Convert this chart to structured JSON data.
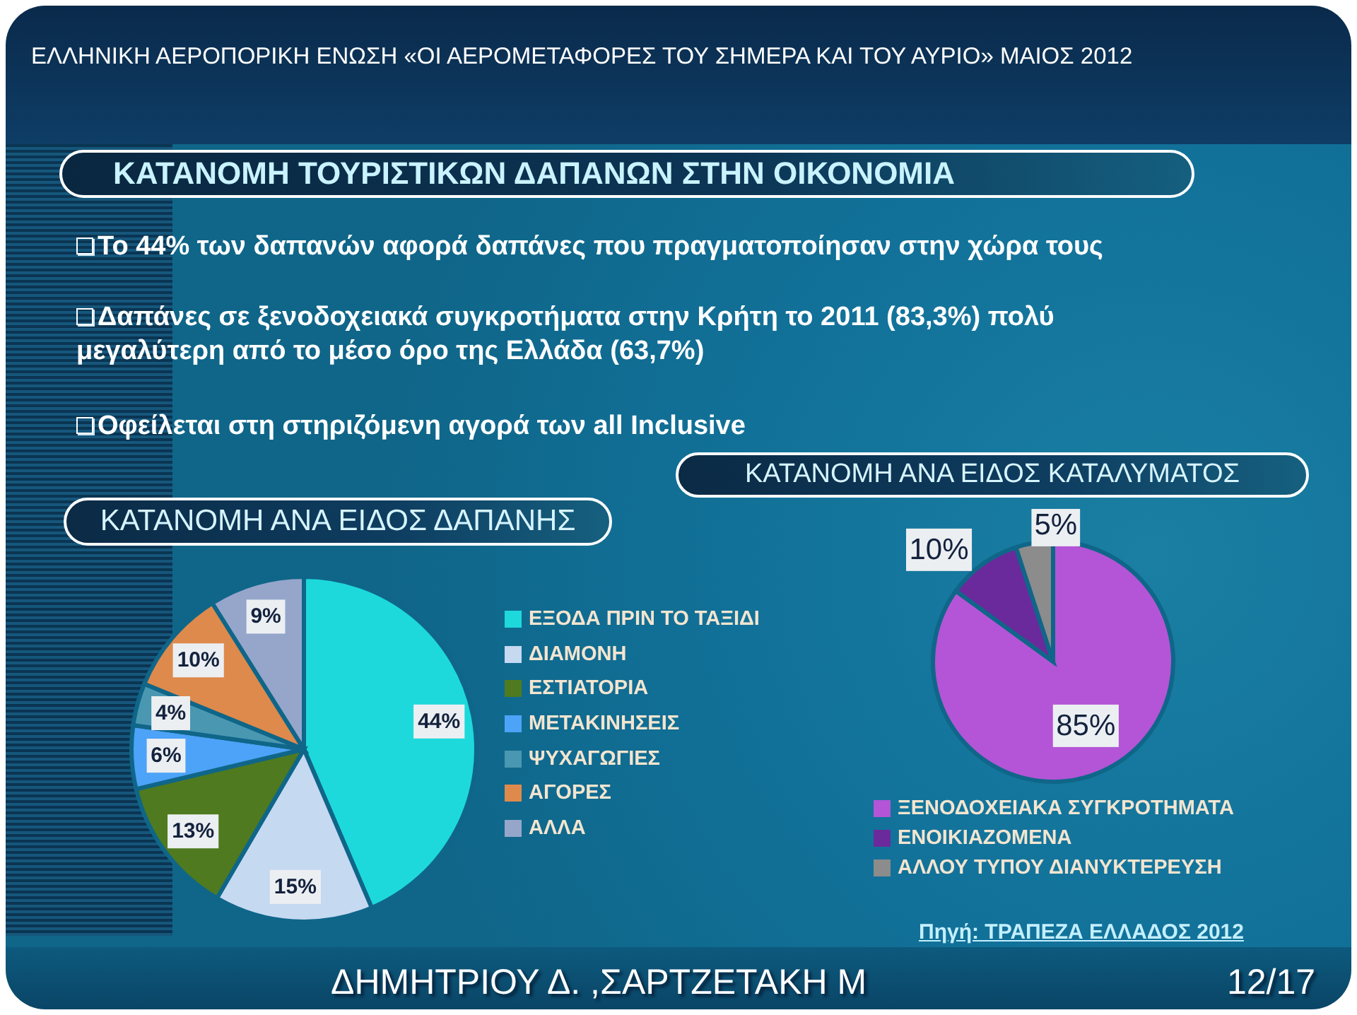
{
  "chart_data": [
    {
      "type": "pie",
      "title": "ΚΑΤΑΝΟΜΗ ΑΝΑ ΕΙΔΟΣ ΔΑΠΑΝΗΣ",
      "categories": [
        "ΕΞΟΔΑ ΠΡΙΝ ΤΟ ΤΑΞΙΔΙ",
        "ΔΙΑΜΟΝΗ",
        "ΕΣΤΙΑΤΟΡΙΑ",
        "ΜΕΤΑΚΙΝΗΣΕΙΣ",
        "ΨΥΧΑΓΩΓΙΕΣ",
        "ΑΓΟΡΕΣ",
        "ΑΛΛΑ"
      ],
      "values": [
        44,
        15,
        13,
        6,
        4,
        10,
        9
      ],
      "colors": [
        "#1dd9dc",
        "#c5d9f1",
        "#4f7a1f",
        "#4da3f7",
        "#4a97b2",
        "#de8a4c",
        "#96a6cb"
      ],
      "value_labels": [
        "44%",
        "15%",
        "13%",
        "6%",
        "4%",
        "10%",
        "9%"
      ],
      "legend": "right",
      "annotations": [
        "ΕΛΛΗΝΙΚΗ ΑΕΡΟΠΟΡΙΚΗ ΕΝΩΣΗ «ΟΙ ΑΕΡΟΜΕΤΑΦΟΡΕΣ ΤΟΥ ΣΗΜΕΡΑ ΚΑΙ ΤΟΥ ΑΥΡΙΟ» ΜΑΙΟΣ 2012",
        "ΚΑΤΑΝΟΜΗ ΤΟΥΡΙΣΤΙΚΩΝ ΔΑΠΑΝΩΝ ΣΤΗΝ ΟΙΚΟΝΟΜΙΑ",
        "Το 44% των δαπανών αφορά δαπάνες που πραγματοποίησαν στην χώρα τους",
        "Δαπάνες σε ξενοδοχειακά συγκροτήματα στην Κρήτη το 2011 (83,3%) πολύ μεγαλύτερη από το μέσο όρο της Ελλάδα (63,7%)",
        "Οφείλεται στη στηριζόμενη αγορά των all Inclusive"
      ]
    },
    {
      "type": "pie",
      "title": "ΚΑΤΑΝΟΜΗ ΑΝΑ ΕΙΔΟΣ ΚΑΤΑΛΥΜΑΤΟΣ",
      "categories": [
        "ΞΕΝΟΔΟΧΕΙΑΚΑ ΣΥΓΚΡΟΤΗΜΑΤΑ",
        "ΕΝΟΙΚΙΑΖΟΜΕΝΑ",
        "ΑΛΛΟΥ ΤΥΠΟΥ ΔΙΑΝΥΚΤΕΡΕΥΣΗ"
      ],
      "values": [
        85,
        10,
        5
      ],
      "colors": [
        "#b355d6",
        "#6b2a9c",
        "#8c8c8c"
      ],
      "value_labels": [
        "85%",
        "10%",
        "5%"
      ],
      "legend": "bottom",
      "annotations": [
        "Πηγή: ΤΡΑΠΕΖΑ ΕΛΛΑΔΟΣ 2012",
        "ΔΗΜΗΤΡΙΟΥ Δ. ,ΣΑΡΤΖΕΤΑΚΗ Μ",
        "12/17"
      ]
    }
  ]
}
